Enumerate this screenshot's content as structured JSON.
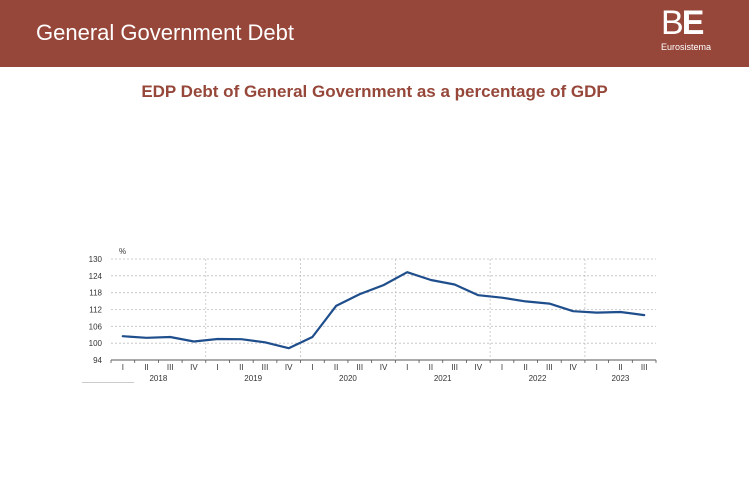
{
  "header": {
    "title": "General Government Debt"
  },
  "logo": {
    "mark_b": "B",
    "mark_e": "E",
    "sub": "Eurosistema"
  },
  "colors": {
    "header_bg": "#96473a",
    "line": "#1f4e8c",
    "subtitle": "#96473a"
  },
  "chart_data": {
    "type": "line",
    "title": "EDP Debt of General Government as a percentage of GDP",
    "unit_label": "%",
    "ylim": [
      94,
      130
    ],
    "yticks": [
      94,
      100,
      106,
      112,
      118,
      124,
      130
    ],
    "grid": true,
    "quarters": [
      "I",
      "II",
      "III",
      "IV",
      "I",
      "II",
      "III",
      "IV",
      "I",
      "II",
      "III",
      "IV",
      "I",
      "II",
      "III",
      "IV",
      "I",
      "II",
      "III",
      "IV",
      "I",
      "II",
      "III"
    ],
    "years": [
      {
        "label": "2018",
        "start": 0,
        "end": 3
      },
      {
        "label": "2019",
        "start": 4,
        "end": 7
      },
      {
        "label": "2020",
        "start": 8,
        "end": 11
      },
      {
        "label": "2021",
        "start": 12,
        "end": 15
      },
      {
        "label": "2022",
        "start": 16,
        "end": 19
      },
      {
        "label": "2023",
        "start": 20,
        "end": 22
      }
    ],
    "series": [
      {
        "values": [
          102.5,
          101.9,
          102.2,
          100.6,
          101.5,
          101.4,
          100.3,
          98.2,
          102.2,
          113.3,
          117.5,
          120.7,
          125.3,
          122.5,
          120.9,
          117.1,
          116.2,
          114.9,
          114.1,
          111.4,
          110.9,
          111.1,
          110.0
        ]
      }
    ]
  }
}
